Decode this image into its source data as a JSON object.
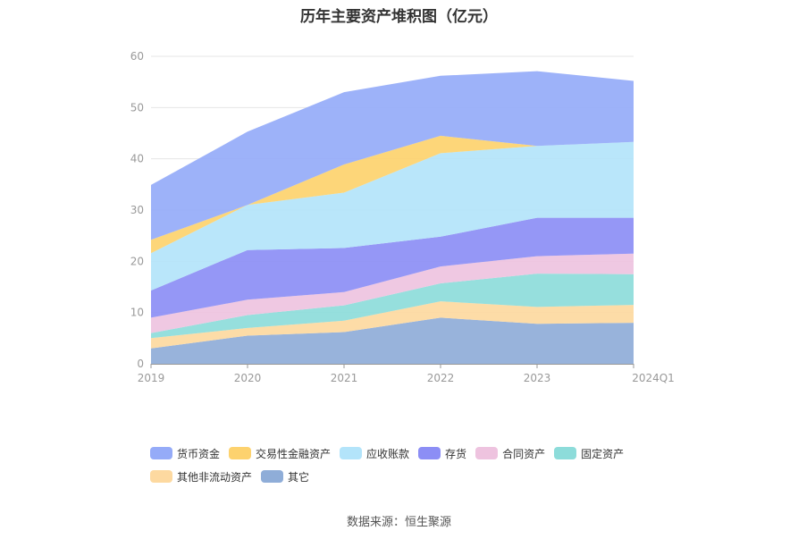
{
  "title": "历年主要资产堆积图（亿元）",
  "source": "数据来源：恒生聚源",
  "chart_data": {
    "type": "area",
    "stacked": true,
    "categories": [
      "2019",
      "2020",
      "2021",
      "2022",
      "2023",
      "2024Q1"
    ],
    "ylim": [
      0,
      60
    ],
    "yticks": [
      0,
      10,
      20,
      30,
      40,
      50,
      60
    ],
    "grid": true,
    "legend_position": "bottom",
    "series": [
      {
        "name": "其它",
        "color": "#8fadd8",
        "values": [
          3.0,
          5.5,
          6.2,
          9.0,
          7.8,
          8.0
        ]
      },
      {
        "name": "其他非流动资产",
        "color": "#fdd9a0",
        "values": [
          2.0,
          1.5,
          2.2,
          3.2,
          3.3,
          3.5
        ]
      },
      {
        "name": "固定资产",
        "color": "#8ddcda",
        "values": [
          1.0,
          2.5,
          3.0,
          3.5,
          6.5,
          6.0
        ]
      },
      {
        "name": "合同资产",
        "color": "#eec3df",
        "values": [
          3.0,
          3.0,
          2.6,
          3.3,
          3.4,
          4.0
        ]
      },
      {
        "name": "存货",
        "color": "#8c8ef5",
        "values": [
          5.3,
          9.7,
          8.6,
          5.8,
          7.5,
          7.0
        ]
      },
      {
        "name": "应收账款",
        "color": "#b3e4fa",
        "values": [
          7.3,
          8.8,
          10.8,
          16.3,
          14.0,
          14.8
        ]
      },
      {
        "name": "交易性金融资产",
        "color": "#fdd26e",
        "values": [
          2.6,
          0.0,
          5.5,
          3.4,
          0.0,
          0.0
        ]
      },
      {
        "name": "货币资金",
        "color": "#95abf8",
        "values": [
          10.7,
          14.3,
          14.1,
          11.7,
          14.6,
          11.9
        ]
      }
    ],
    "legend_order": [
      "货币资金",
      "交易性金融资产",
      "应收账款",
      "存货",
      "合同资产",
      "固定资产",
      "其他非流动资产",
      "其它"
    ]
  }
}
